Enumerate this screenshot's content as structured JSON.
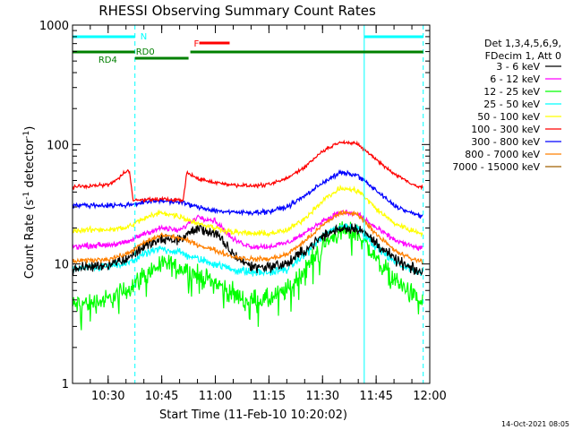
{
  "chart_data": {
    "type": "line",
    "title": "RHESSI Observing Summary Count Rates",
    "xlabel": "Start Time (11-Feb-10 10:20:02)",
    "ylabel": "Count Rate (s",
    "ylabel_sup1": "-1",
    "ylabel_mid": " detector",
    "ylabel_sup2": "-1",
    "ylabel_end": ")",
    "y_scale": "log",
    "ylim": [
      1,
      1000
    ],
    "xlim": [
      "10:20:02",
      "12:00:00"
    ],
    "x_ticks": [
      "10:30",
      "10:45",
      "11:00",
      "11:15",
      "11:30",
      "11:45",
      "12:00"
    ],
    "y_ticks": [
      "1",
      "10",
      "100",
      "1000"
    ],
    "timestamp": "14-Oct-2021 08:05",
    "legend_header": [
      "Det 1,3,4,5,6,9,",
      "FDecim 1, Att 0"
    ],
    "legend_placement": "right",
    "night_lines": [
      "10:20:02",
      "10:37:30",
      "11:41:40",
      "11:58:10"
    ],
    "bars": [
      {
        "label": "N",
        "color": "#00ffff",
        "segments": [
          [
            "10:20:02",
            "10:37:30"
          ],
          [
            "11:41:40",
            "11:58:10"
          ]
        ]
      },
      {
        "label": "F",
        "color": "#ff0000",
        "segments": [
          [
            "10:55:30",
            "11:04:00"
          ]
        ]
      },
      {
        "label": "RD0",
        "color": "#008000",
        "segments": [
          [
            "10:37:30",
            "10:52:30"
          ],
          [
            "10:53:00",
            "11:58:10"
          ]
        ]
      },
      {
        "label": "RD4",
        "color": "#008000",
        "segments": [
          [
            "10:20:02",
            "10:37:30"
          ]
        ]
      }
    ],
    "series": [
      {
        "name": "3 - 6 keV",
        "color": "#000000",
        "points": [
          [
            "10:20",
            9
          ],
          [
            "10:30",
            10
          ],
          [
            "10:35",
            11
          ],
          [
            "10:40",
            14
          ],
          [
            "10:45",
            16
          ],
          [
            "10:50",
            16
          ],
          [
            "10:55",
            20
          ],
          [
            "11:00",
            18
          ],
          [
            "11:05",
            12
          ],
          [
            "11:10",
            9.5
          ],
          [
            "11:15",
            9.5
          ],
          [
            "11:20",
            10
          ],
          [
            "11:25",
            13
          ],
          [
            "11:30",
            17
          ],
          [
            "11:35",
            20
          ],
          [
            "11:40",
            20
          ],
          [
            "11:45",
            15
          ],
          [
            "11:50",
            11
          ],
          [
            "11:55",
            9
          ],
          [
            "11:58",
            8.5
          ]
        ]
      },
      {
        "name": "6 - 12 keV",
        "color": "#ff00ff",
        "points": [
          [
            "10:20",
            14
          ],
          [
            "10:30",
            14.5
          ],
          [
            "10:35",
            15
          ],
          [
            "10:40",
            18
          ],
          [
            "10:45",
            20
          ],
          [
            "10:50",
            19
          ],
          [
            "10:55",
            25
          ],
          [
            "11:00",
            23
          ],
          [
            "11:05",
            16
          ],
          [
            "11:10",
            14
          ],
          [
            "11:15",
            14
          ],
          [
            "11:20",
            15
          ],
          [
            "11:25",
            18
          ],
          [
            "11:30",
            23
          ],
          [
            "11:35",
            27
          ],
          [
            "11:40",
            26
          ],
          [
            "11:45",
            20
          ],
          [
            "11:50",
            16
          ],
          [
            "11:55",
            14
          ],
          [
            "11:58",
            13.5
          ]
        ]
      },
      {
        "name": "12 - 25 keV",
        "color": "#00ff00",
        "points": [
          [
            "10:20",
            4.5
          ],
          [
            "10:30",
            5
          ],
          [
            "10:35",
            6
          ],
          [
            "10:40",
            8
          ],
          [
            "10:45",
            10
          ],
          [
            "10:50",
            9.5
          ],
          [
            "10:55",
            8
          ],
          [
            "11:00",
            7
          ],
          [
            "11:05",
            5.5
          ],
          [
            "11:10",
            5
          ],
          [
            "11:15",
            5
          ],
          [
            "11:20",
            6
          ],
          [
            "11:25",
            9
          ],
          [
            "11:30",
            14
          ],
          [
            "11:35",
            19
          ],
          [
            "11:40",
            18
          ],
          [
            "11:45",
            11
          ],
          [
            "11:50",
            7.5
          ],
          [
            "11:55",
            5.5
          ],
          [
            "11:58",
            4.8
          ]
        ]
      },
      {
        "name": "25 - 50 keV",
        "color": "#00ffff",
        "points": [
          [
            "10:20",
            9
          ],
          [
            "10:30",
            9.5
          ],
          [
            "10:35",
            10
          ],
          [
            "10:40",
            12
          ],
          [
            "10:45",
            13.5
          ],
          [
            "10:50",
            12.5
          ],
          [
            "10:55",
            11
          ],
          [
            "11:00",
            10
          ],
          [
            "11:05",
            9
          ],
          [
            "11:10",
            8.5
          ],
          [
            "11:15",
            8.5
          ],
          [
            "11:20",
            9
          ],
          [
            "11:25",
            12
          ],
          [
            "11:30",
            17
          ],
          [
            "11:35",
            21
          ],
          [
            "11:40",
            20
          ],
          [
            "11:45",
            14
          ],
          [
            "11:50",
            10.5
          ],
          [
            "11:55",
            9
          ],
          [
            "11:58",
            8.5
          ]
        ]
      },
      {
        "name": "50 - 100 keV",
        "color": "#ffff00",
        "points": [
          [
            "10:20",
            19
          ],
          [
            "10:30",
            19.5
          ],
          [
            "10:35",
            20
          ],
          [
            "10:40",
            24
          ],
          [
            "10:45",
            27
          ],
          [
            "10:50",
            25
          ],
          [
            "10:55",
            22
          ],
          [
            "11:00",
            20
          ],
          [
            "11:05",
            18.5
          ],
          [
            "11:10",
            18
          ],
          [
            "11:15",
            18
          ],
          [
            "11:20",
            19
          ],
          [
            "11:25",
            24
          ],
          [
            "11:30",
            34
          ],
          [
            "11:35",
            43
          ],
          [
            "11:40",
            41
          ],
          [
            "11:45",
            29
          ],
          [
            "11:50",
            22
          ],
          [
            "11:55",
            19
          ],
          [
            "11:58",
            18
          ]
        ]
      },
      {
        "name": "100 - 300 keV",
        "color": "#ff0000",
        "points": [
          [
            "10:20",
            44
          ],
          [
            "10:30",
            46
          ],
          [
            "10:33",
            52
          ],
          [
            "10:35",
            60
          ],
          [
            "10:36",
            60
          ],
          [
            "10:37",
            34
          ],
          [
            "10:45",
            35
          ],
          [
            "10:51",
            34
          ],
          [
            "10:52",
            58
          ],
          [
            "10:55",
            52
          ],
          [
            "11:00",
            48
          ],
          [
            "11:05",
            46
          ],
          [
            "11:10",
            45
          ],
          [
            "11:15",
            46
          ],
          [
            "11:20",
            52
          ],
          [
            "11:25",
            65
          ],
          [
            "11:30",
            88
          ],
          [
            "11:35",
            106
          ],
          [
            "11:40",
            100
          ],
          [
            "11:45",
            75
          ],
          [
            "11:50",
            57
          ],
          [
            "11:55",
            47
          ],
          [
            "11:58",
            43
          ]
        ]
      },
      {
        "name": "300 - 800 keV",
        "color": "#0000ff",
        "points": [
          [
            "10:20",
            31
          ],
          [
            "10:30",
            31
          ],
          [
            "10:35",
            31
          ],
          [
            "10:40",
            33
          ],
          [
            "10:45",
            34
          ],
          [
            "10:50",
            33
          ],
          [
            "10:55",
            30
          ],
          [
            "11:00",
            28
          ],
          [
            "11:05",
            27
          ],
          [
            "11:10",
            27
          ],
          [
            "11:15",
            27.5
          ],
          [
            "11:20",
            30
          ],
          [
            "11:25",
            37
          ],
          [
            "11:30",
            48
          ],
          [
            "11:35",
            58
          ],
          [
            "11:40",
            55
          ],
          [
            "11:45",
            41
          ],
          [
            "11:50",
            31
          ],
          [
            "11:55",
            26.5
          ],
          [
            "11:58",
            25
          ]
        ]
      },
      {
        "name": "800 - 7000 keV",
        "color": "#ff8000",
        "points": [
          [
            "10:20",
            10.5
          ],
          [
            "10:30",
            11
          ],
          [
            "10:35",
            12
          ],
          [
            "10:40",
            15
          ],
          [
            "10:45",
            17.5
          ],
          [
            "10:50",
            16.5
          ],
          [
            "10:55",
            14.5
          ],
          [
            "11:00",
            13
          ],
          [
            "11:05",
            11.5
          ],
          [
            "11:10",
            11
          ],
          [
            "11:15",
            11
          ],
          [
            "11:20",
            12
          ],
          [
            "11:25",
            15.5
          ],
          [
            "11:30",
            21
          ],
          [
            "11:35",
            27
          ],
          [
            "11:40",
            26
          ],
          [
            "11:45",
            18
          ],
          [
            "11:50",
            13
          ],
          [
            "11:55",
            11
          ],
          [
            "11:58",
            10.5
          ]
        ]
      },
      {
        "name": "7000 - 15000 keV",
        "color": "#a06000",
        "points": []
      }
    ]
  }
}
